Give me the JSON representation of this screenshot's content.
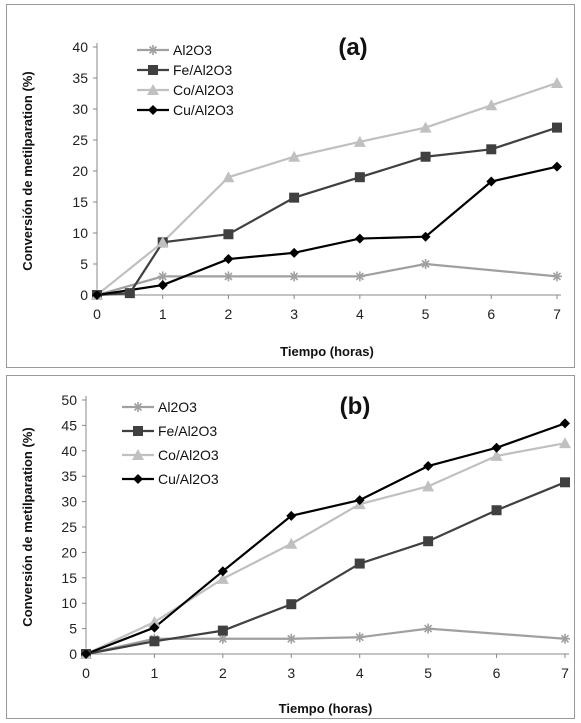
{
  "chart_data": [
    {
      "type": "line",
      "panel_label": "(a)",
      "xlabel": "Tiempo (horas)",
      "ylabel": "Conversión de metilparation (%)",
      "xlim": [
        0,
        7
      ],
      "ylim": [
        0,
        40
      ],
      "xticks": [
        0,
        1,
        2,
        3,
        4,
        5,
        6,
        7
      ],
      "yticks": [
        0,
        5,
        10,
        15,
        20,
        25,
        30,
        35,
        40
      ],
      "legend_position": "top-left",
      "grid": false,
      "series": [
        {
          "name": "Al2O3",
          "color": "#a0a0a0",
          "marker": "asterisk",
          "x": [
            0,
            1,
            2,
            3,
            4,
            5,
            7
          ],
          "y": [
            0,
            3,
            3,
            3,
            3,
            5,
            3
          ]
        },
        {
          "name": "Fe/Al2O3",
          "color": "#404040",
          "marker": "square",
          "x": [
            0,
            0.5,
            1,
            2,
            3,
            4,
            5,
            6,
            7
          ],
          "y": [
            0,
            0.3,
            8.5,
            9.8,
            15.7,
            19,
            22.3,
            23.5,
            27
          ]
        },
        {
          "name": "Co/Al2O3",
          "color": "#c0c0c0",
          "marker": "triangle",
          "x": [
            0,
            1,
            2,
            3,
            4,
            5,
            6,
            7
          ],
          "y": [
            0,
            8.5,
            19,
            22.3,
            24.7,
            27,
            30.6,
            34.2
          ]
        },
        {
          "name": "Cu/Al2O3",
          "color": "#000000",
          "marker": "diamond",
          "x": [
            0,
            1,
            2,
            3,
            4,
            5,
            6,
            7
          ],
          "y": [
            0,
            1.6,
            5.8,
            6.8,
            9.1,
            9.4,
            18.3,
            20.7
          ]
        }
      ]
    },
    {
      "type": "line",
      "panel_label": "(b)",
      "xlabel": "Tiempo (horas)",
      "ylabel": "Conversión de metilparation (%)",
      "xlim": [
        0,
        7
      ],
      "ylim": [
        0,
        50
      ],
      "xticks": [
        0,
        1,
        2,
        3,
        4,
        5,
        6,
        7
      ],
      "yticks": [
        0,
        5,
        10,
        15,
        20,
        25,
        30,
        35,
        40,
        45,
        50
      ],
      "legend_position": "top-left",
      "grid": false,
      "series": [
        {
          "name": "Al2O3",
          "color": "#a0a0a0",
          "marker": "asterisk",
          "x": [
            0,
            1,
            2,
            3,
            4,
            5,
            7
          ],
          "y": [
            0,
            3,
            3,
            3,
            3.3,
            5,
            3
          ]
        },
        {
          "name": "Fe/Al2O3",
          "color": "#404040",
          "marker": "square",
          "x": [
            0,
            1,
            2,
            3,
            4,
            5,
            6,
            7
          ],
          "y": [
            0,
            2.5,
            4.6,
            9.8,
            17.8,
            22.2,
            28.3,
            33.8
          ]
        },
        {
          "name": "Co/Al2O3",
          "color": "#c0c0c0",
          "marker": "triangle",
          "x": [
            0,
            1,
            2,
            3,
            4,
            5,
            6,
            7
          ],
          "y": [
            0,
            6.3,
            14.8,
            21.7,
            29.5,
            33,
            39,
            41.5
          ]
        },
        {
          "name": "Cu/Al2O3",
          "color": "#000000",
          "marker": "diamond",
          "x": [
            0,
            1,
            2,
            3,
            4,
            5,
            6,
            7
          ],
          "y": [
            0,
            5.2,
            16.3,
            27.2,
            30.3,
            37,
            40.6,
            45.4
          ]
        }
      ]
    }
  ]
}
